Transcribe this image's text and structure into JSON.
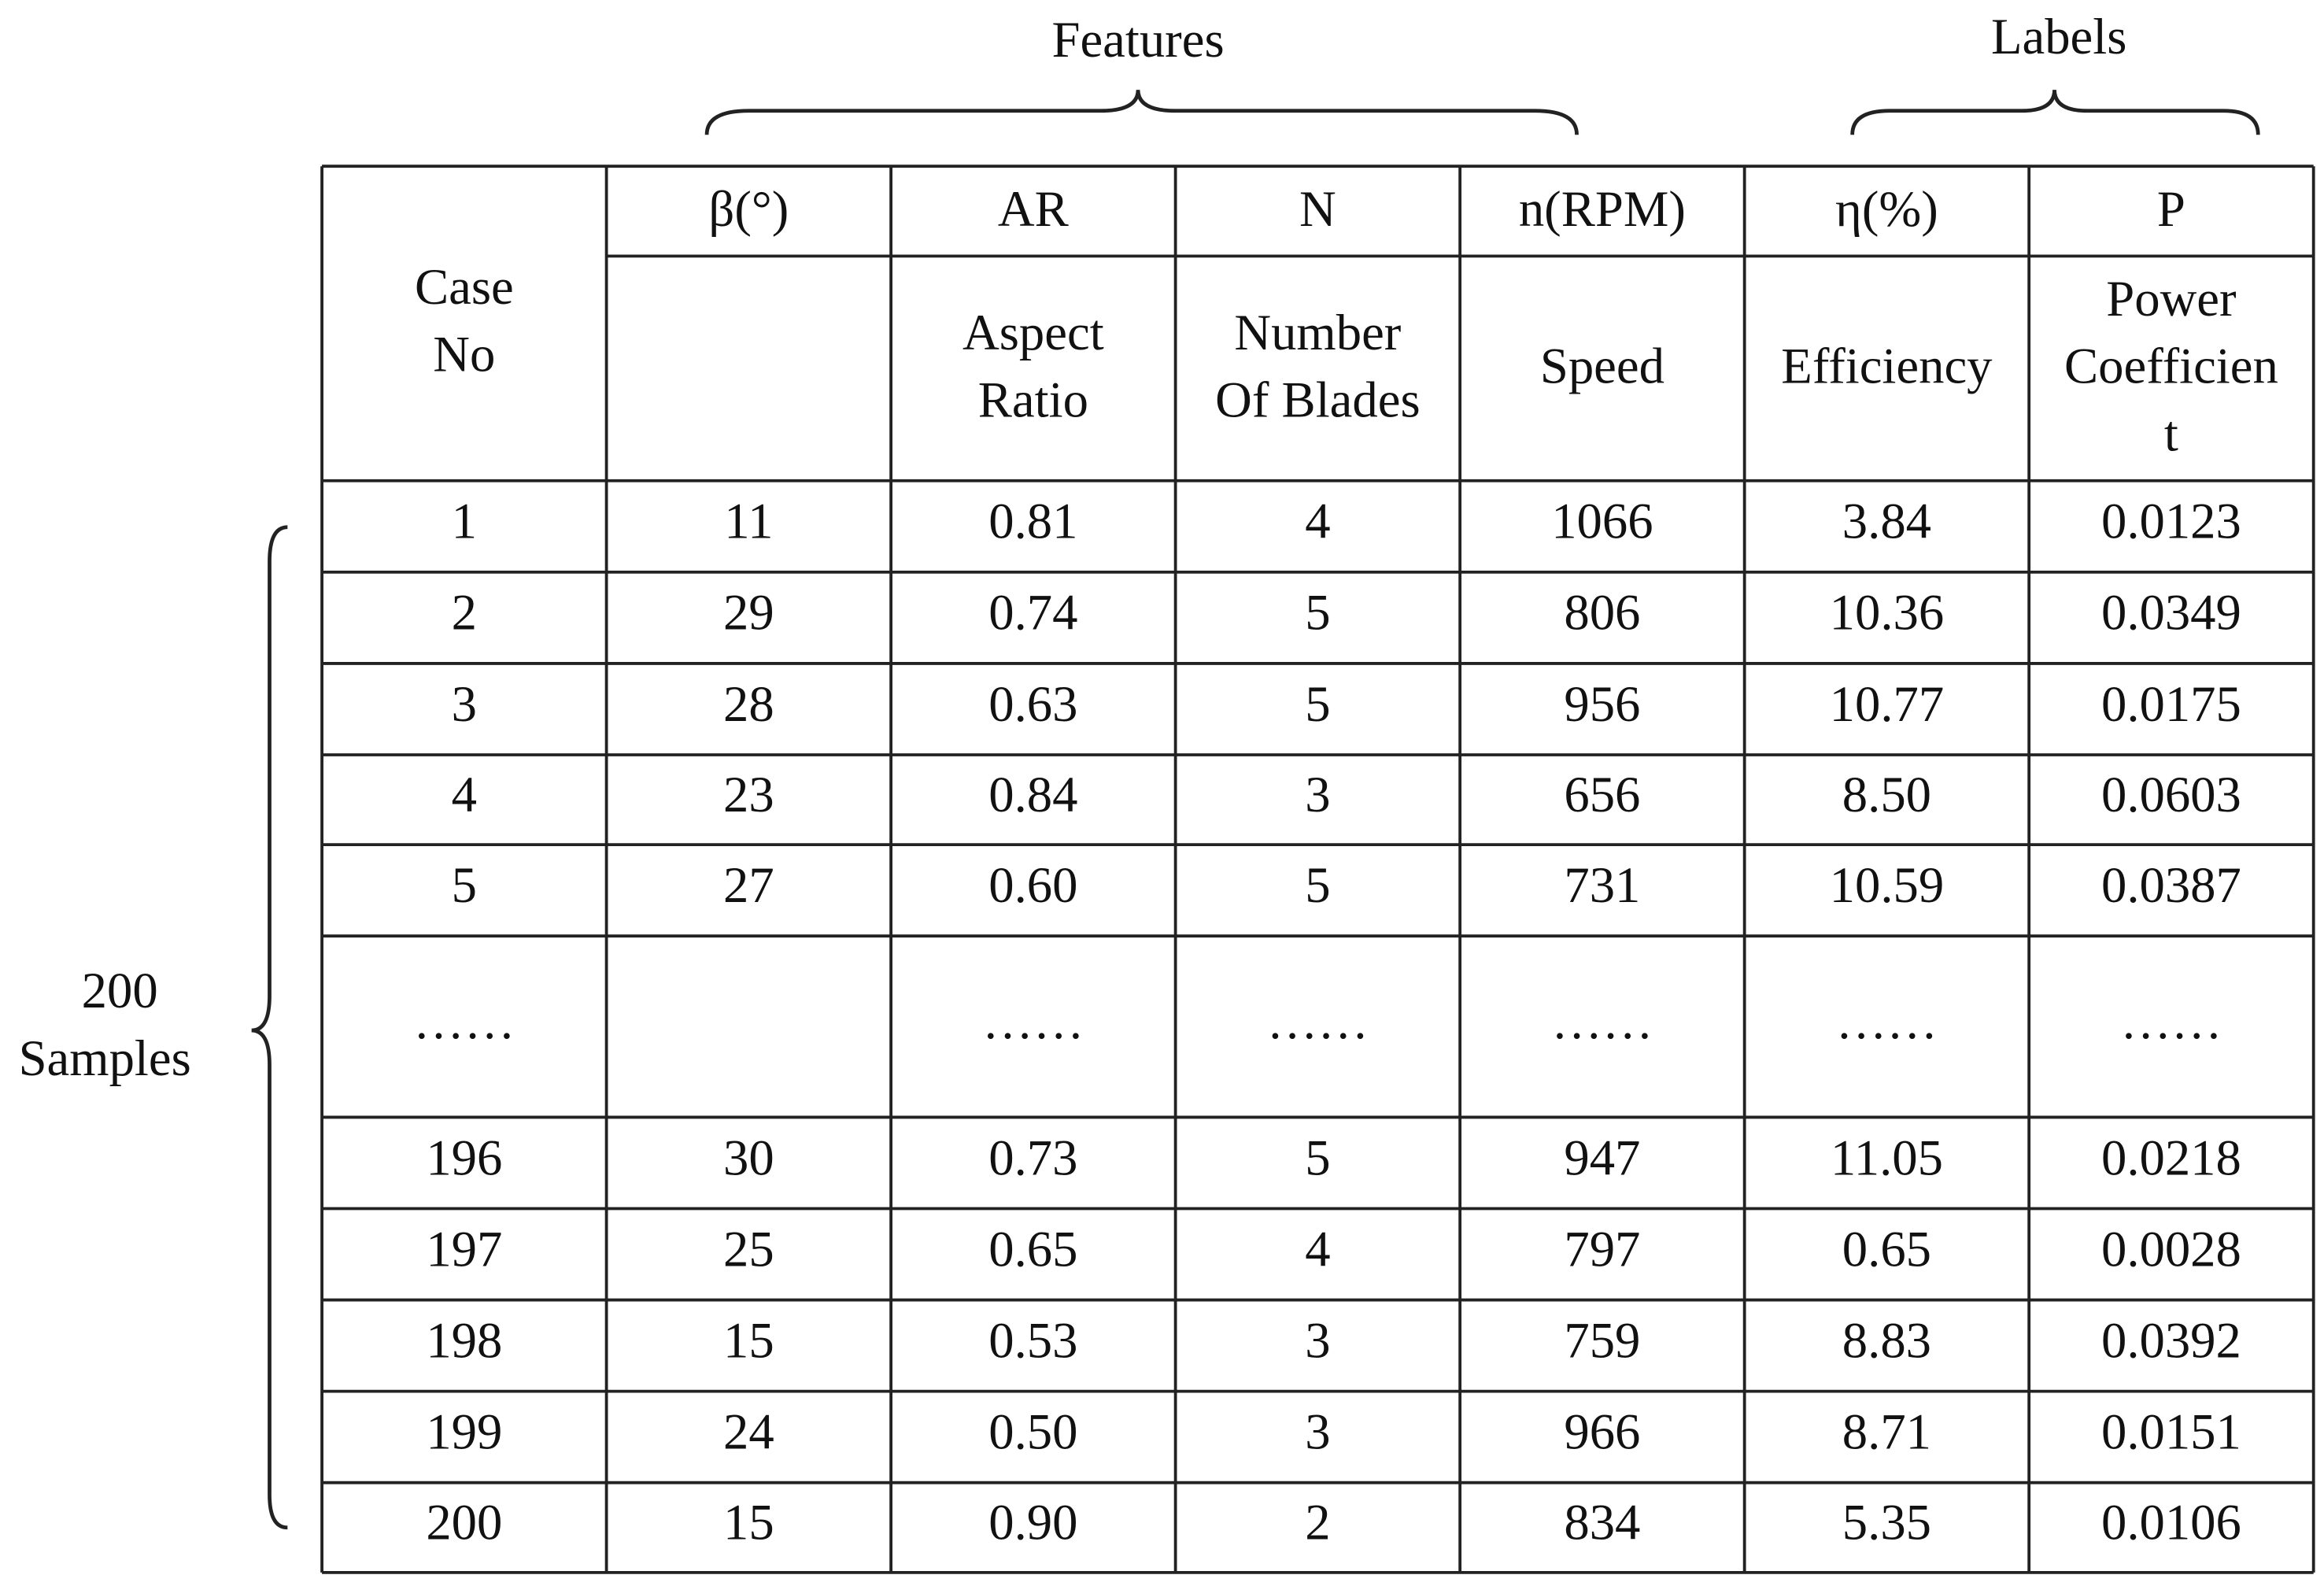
{
  "groups": {
    "features": "Features",
    "labels": "Labels"
  },
  "side_label": [
    "200",
    "Samples"
  ],
  "table": {
    "case_header": [
      "Case",
      "No"
    ],
    "symbols": [
      "β(°)",
      "AR",
      "N",
      "n(RPM)",
      "η(%)",
      "P"
    ],
    "descriptions": [
      null,
      [
        "Aspect",
        "Ratio"
      ],
      [
        "Number",
        "Of Blades"
      ],
      [
        "Speed"
      ],
      [
        "Efficiency"
      ],
      [
        "Power",
        "Coefficien",
        "t"
      ]
    ],
    "rows": [
      [
        "1",
        "11",
        "0.81",
        "4",
        "1066",
        "3.84",
        "0.0123"
      ],
      [
        "2",
        "29",
        "0.74",
        "5",
        "806",
        "10.36",
        "0.0349"
      ],
      [
        "3",
        "28",
        "0.63",
        "5",
        "956",
        "10.77",
        "0.0175"
      ],
      [
        "4",
        "23",
        "0.84",
        "3",
        "656",
        "8.50",
        "0.0603"
      ],
      [
        "5",
        "27",
        "0.60",
        "5",
        "731",
        "10.59",
        "0.0387"
      ],
      [
        "……",
        null,
        "……",
        "……",
        "……",
        "……",
        "……"
      ],
      [
        "196",
        "30",
        "0.73",
        "5",
        "947",
        "11.05",
        "0.0218"
      ],
      [
        "197",
        "25",
        "0.65",
        "4",
        "797",
        "0.65",
        "0.0028"
      ],
      [
        "198",
        "15",
        "0.53",
        "3",
        "759",
        "8.83",
        "0.0392"
      ],
      [
        "199",
        "24",
        "0.50",
        "3",
        "966",
        "8.71",
        "0.0151"
      ],
      [
        "200",
        "15",
        "0.90",
        "2",
        "834",
        "5.35",
        "0.0106"
      ]
    ]
  }
}
